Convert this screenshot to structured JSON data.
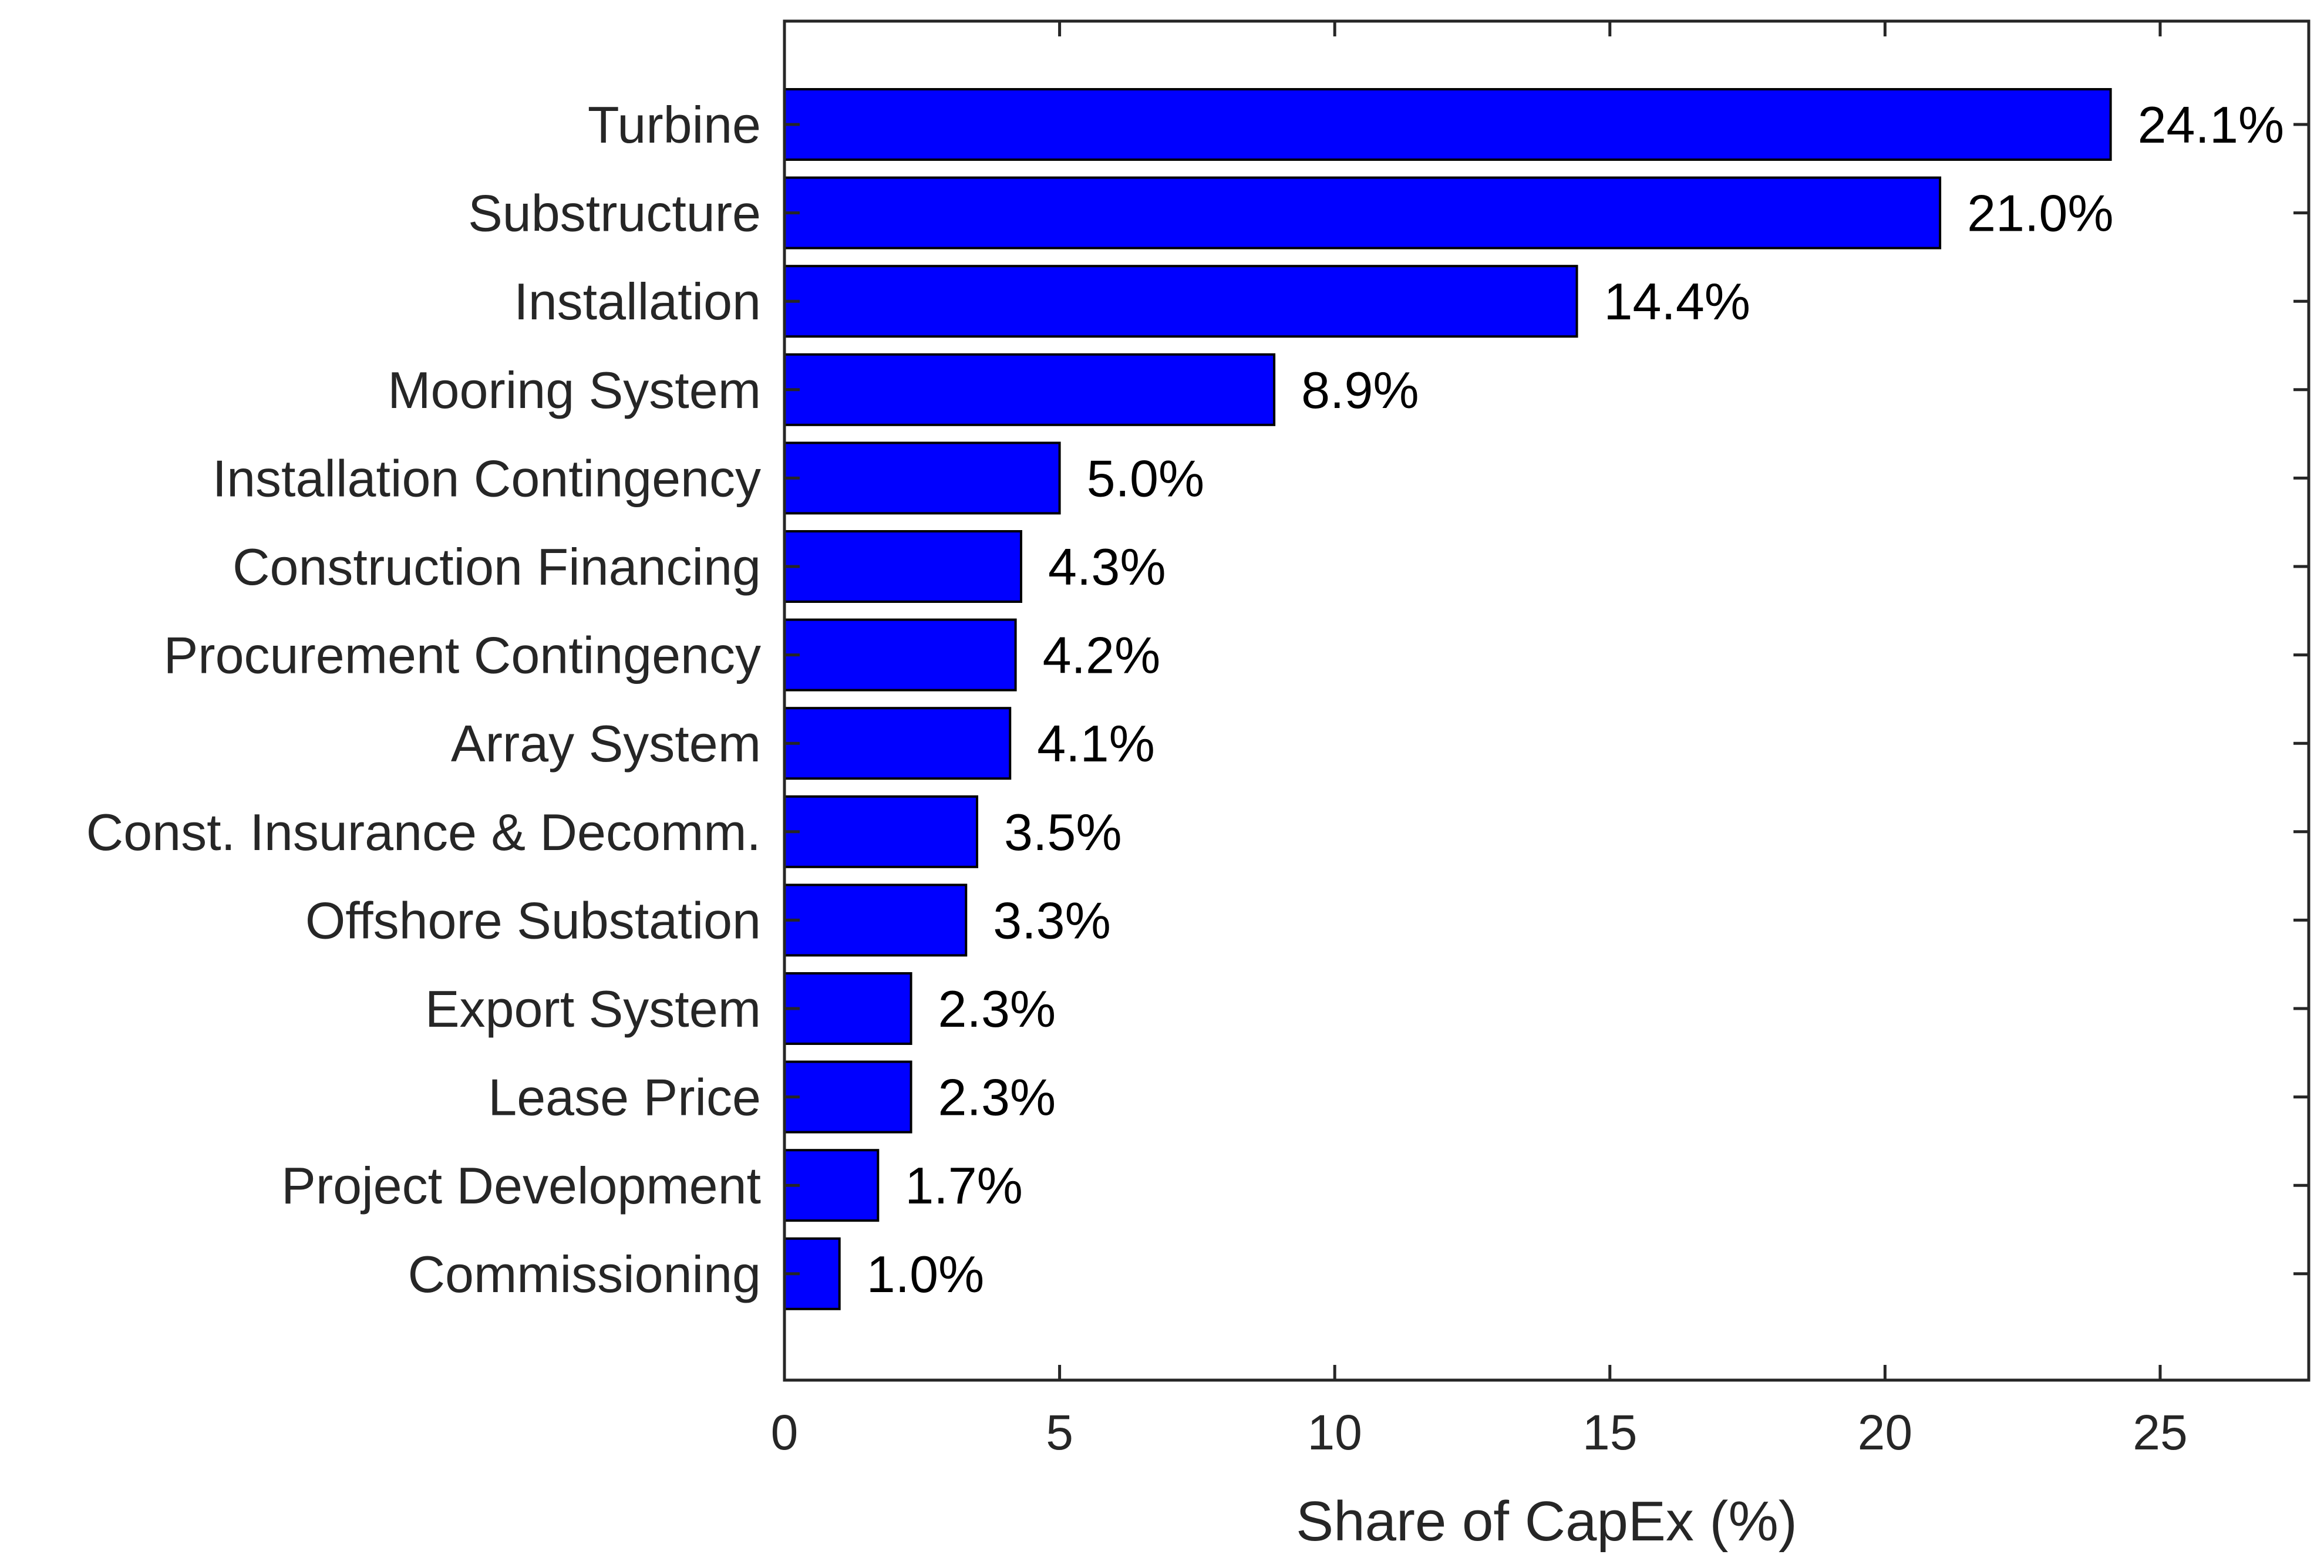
{
  "chart_data": {
    "type": "bar",
    "orientation": "horizontal",
    "categories": [
      "Turbine",
      "Substructure",
      "Installation",
      "Mooring System",
      "Installation Contingency",
      "Construction Financing",
      "Procurement Contingency",
      "Array System",
      "Const. Insurance & Decomm.",
      "Offshore Substation",
      "Export System",
      "Lease Price",
      "Project Development",
      "Commissioning"
    ],
    "values": [
      24.1,
      21.0,
      14.4,
      8.9,
      5.0,
      4.3,
      4.2,
      4.1,
      3.5,
      3.3,
      2.3,
      2.3,
      1.7,
      1.0
    ],
    "value_labels": [
      "24.1%",
      "21.0%",
      "14.4%",
      "8.9%",
      "5.0%",
      "4.3%",
      "4.2%",
      "4.1%",
      "3.5%",
      "3.3%",
      "2.3%",
      "2.3%",
      "1.7%",
      "1.0%"
    ],
    "title": "",
    "xlabel": "Share of CapEx (%)",
    "ylabel": "",
    "xlim": [
      0,
      27.7
    ],
    "xticks": [
      0,
      5,
      10,
      15,
      20,
      25
    ],
    "xtick_labels": [
      "0",
      "5",
      "10",
      "15",
      "20",
      "25"
    ],
    "grid": false,
    "legend": "none",
    "bar_color": "#0000FF",
    "bar_edge_color": "#000000",
    "axis_color": "#262626"
  }
}
